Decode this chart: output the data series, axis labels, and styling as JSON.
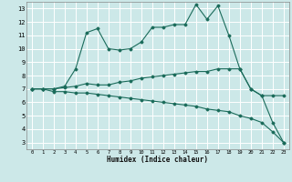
{
  "xlabel": "Humidex (Indice chaleur)",
  "bg_color": "#cce8e8",
  "grid_color": "#ffffff",
  "line_color": "#1a6b5a",
  "x_ticks": [
    0,
    1,
    2,
    3,
    4,
    5,
    6,
    7,
    8,
    9,
    10,
    11,
    12,
    13,
    14,
    15,
    16,
    17,
    18,
    19,
    20,
    21,
    22,
    23
  ],
  "y_ticks": [
    3,
    4,
    5,
    6,
    7,
    8,
    9,
    10,
    11,
    12,
    13
  ],
  "ylim": [
    2.5,
    13.5
  ],
  "xlim": [
    -0.5,
    23.5
  ],
  "line1_x": [
    0,
    1,
    2,
    3,
    4,
    5,
    6,
    7,
    8,
    9,
    10,
    11,
    12,
    13,
    14,
    15,
    16,
    17,
    18,
    19,
    20,
    21,
    22,
    23
  ],
  "line1_y": [
    7.0,
    7.0,
    7.0,
    7.2,
    8.5,
    11.2,
    11.5,
    10.0,
    9.9,
    10.0,
    10.5,
    11.6,
    11.6,
    11.8,
    11.8,
    13.3,
    12.2,
    13.2,
    11.0,
    8.5,
    7.0,
    6.5,
    4.5,
    3.0
  ],
  "line2_x": [
    0,
    1,
    2,
    3,
    4,
    5,
    6,
    7,
    8,
    9,
    10,
    11,
    12,
    13,
    14,
    15,
    16,
    17,
    18,
    19,
    20,
    21,
    22,
    23
  ],
  "line2_y": [
    7.0,
    7.0,
    7.0,
    7.1,
    7.2,
    7.4,
    7.3,
    7.3,
    7.5,
    7.6,
    7.8,
    7.9,
    8.0,
    8.1,
    8.2,
    8.3,
    8.3,
    8.5,
    8.5,
    8.5,
    7.0,
    6.5,
    6.5,
    6.5
  ],
  "line3_x": [
    0,
    1,
    2,
    3,
    4,
    5,
    6,
    7,
    8,
    9,
    10,
    11,
    12,
    13,
    14,
    15,
    16,
    17,
    18,
    19,
    20,
    21,
    22,
    23
  ],
  "line3_y": [
    7.0,
    7.0,
    6.8,
    6.8,
    6.7,
    6.7,
    6.6,
    6.5,
    6.4,
    6.3,
    6.2,
    6.1,
    6.0,
    5.9,
    5.8,
    5.7,
    5.5,
    5.4,
    5.3,
    5.0,
    4.8,
    4.5,
    3.8,
    3.0
  ]
}
